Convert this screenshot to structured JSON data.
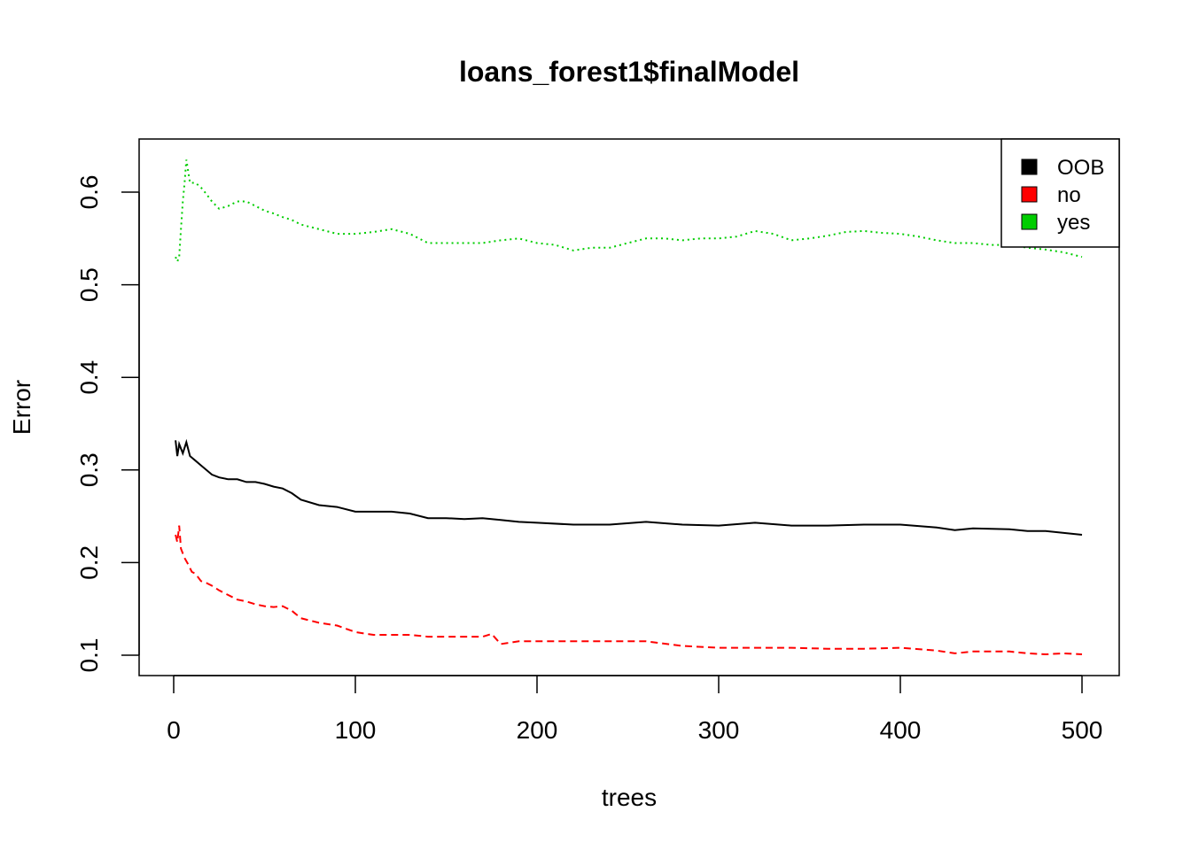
{
  "chart_data": {
    "type": "line",
    "title": "loans_forest1$finalModel",
    "xlabel": "trees",
    "ylabel": "Error",
    "xlim": [
      0,
      500
    ],
    "ylim": [
      0.1,
      0.6
    ],
    "xticks": [
      0,
      100,
      200,
      300,
      400,
      500
    ],
    "yticks": [
      0.1,
      0.2,
      0.3,
      0.4,
      0.5,
      0.6
    ],
    "grid": false,
    "legend_position": "top-right",
    "series": [
      {
        "name": "OOB",
        "color": "#000000",
        "line_style": "solid",
        "points": [
          [
            1,
            0.332
          ],
          [
            2,
            0.315
          ],
          [
            3,
            0.328
          ],
          [
            5,
            0.318
          ],
          [
            7,
            0.33
          ],
          [
            9,
            0.315
          ],
          [
            12,
            0.31
          ],
          [
            15,
            0.305
          ],
          [
            18,
            0.3
          ],
          [
            21,
            0.295
          ],
          [
            25,
            0.292
          ],
          [
            30,
            0.29
          ],
          [
            35,
            0.29
          ],
          [
            40,
            0.287
          ],
          [
            45,
            0.287
          ],
          [
            50,
            0.285
          ],
          [
            55,
            0.282
          ],
          [
            60,
            0.28
          ],
          [
            65,
            0.275
          ],
          [
            70,
            0.268
          ],
          [
            80,
            0.262
          ],
          [
            90,
            0.26
          ],
          [
            100,
            0.255
          ],
          [
            110,
            0.255
          ],
          [
            120,
            0.255
          ],
          [
            130,
            0.253
          ],
          [
            140,
            0.248
          ],
          [
            150,
            0.248
          ],
          [
            160,
            0.247
          ],
          [
            170,
            0.248
          ],
          [
            180,
            0.246
          ],
          [
            190,
            0.244
          ],
          [
            200,
            0.243
          ],
          [
            220,
            0.241
          ],
          [
            240,
            0.241
          ],
          [
            260,
            0.244
          ],
          [
            280,
            0.241
          ],
          [
            300,
            0.24
          ],
          [
            320,
            0.243
          ],
          [
            340,
            0.24
          ],
          [
            360,
            0.24
          ],
          [
            380,
            0.241
          ],
          [
            400,
            0.241
          ],
          [
            420,
            0.238
          ],
          [
            430,
            0.235
          ],
          [
            440,
            0.237
          ],
          [
            460,
            0.236
          ],
          [
            470,
            0.234
          ],
          [
            480,
            0.234
          ],
          [
            490,
            0.232
          ],
          [
            500,
            0.23
          ]
        ]
      },
      {
        "name": "no",
        "color": "#ff0000",
        "line_style": "dashed",
        "points": [
          [
            1,
            0.23
          ],
          [
            2,
            0.222
          ],
          [
            3,
            0.24
          ],
          [
            4,
            0.215
          ],
          [
            6,
            0.205
          ],
          [
            8,
            0.198
          ],
          [
            10,
            0.19
          ],
          [
            12,
            0.188
          ],
          [
            15,
            0.18
          ],
          [
            18,
            0.178
          ],
          [
            21,
            0.175
          ],
          [
            25,
            0.17
          ],
          [
            30,
            0.165
          ],
          [
            35,
            0.16
          ],
          [
            40,
            0.158
          ],
          [
            45,
            0.155
          ],
          [
            50,
            0.153
          ],
          [
            55,
            0.152
          ],
          [
            60,
            0.153
          ],
          [
            65,
            0.148
          ],
          [
            70,
            0.14
          ],
          [
            80,
            0.135
          ],
          [
            90,
            0.132
          ],
          [
            100,
            0.125
          ],
          [
            110,
            0.122
          ],
          [
            120,
            0.122
          ],
          [
            130,
            0.122
          ],
          [
            140,
            0.12
          ],
          [
            150,
            0.12
          ],
          [
            160,
            0.12
          ],
          [
            170,
            0.12
          ],
          [
            175,
            0.123
          ],
          [
            180,
            0.112
          ],
          [
            190,
            0.115
          ],
          [
            200,
            0.115
          ],
          [
            220,
            0.115
          ],
          [
            240,
            0.115
          ],
          [
            260,
            0.115
          ],
          [
            280,
            0.11
          ],
          [
            300,
            0.108
          ],
          [
            320,
            0.108
          ],
          [
            340,
            0.108
          ],
          [
            360,
            0.107
          ],
          [
            380,
            0.107
          ],
          [
            400,
            0.108
          ],
          [
            420,
            0.105
          ],
          [
            430,
            0.102
          ],
          [
            440,
            0.104
          ],
          [
            460,
            0.104
          ],
          [
            470,
            0.102
          ],
          [
            480,
            0.101
          ],
          [
            490,
            0.102
          ],
          [
            500,
            0.101
          ]
        ]
      },
      {
        "name": "yes",
        "color": "#00cd00",
        "line_style": "dotted",
        "points": [
          [
            1,
            0.53
          ],
          [
            2,
            0.525
          ],
          [
            3,
            0.53
          ],
          [
            4,
            0.56
          ],
          [
            5,
            0.59
          ],
          [
            6,
            0.61
          ],
          [
            7,
            0.635
          ],
          [
            9,
            0.61
          ],
          [
            12,
            0.61
          ],
          [
            15,
            0.605
          ],
          [
            18,
            0.598
          ],
          [
            21,
            0.59
          ],
          [
            25,
            0.582
          ],
          [
            30,
            0.585
          ],
          [
            35,
            0.59
          ],
          [
            40,
            0.59
          ],
          [
            45,
            0.585
          ],
          [
            50,
            0.58
          ],
          [
            55,
            0.577
          ],
          [
            60,
            0.573
          ],
          [
            65,
            0.57
          ],
          [
            70,
            0.565
          ],
          [
            80,
            0.56
          ],
          [
            90,
            0.555
          ],
          [
            100,
            0.555
          ],
          [
            110,
            0.557
          ],
          [
            120,
            0.56
          ],
          [
            130,
            0.555
          ],
          [
            140,
            0.545
          ],
          [
            150,
            0.545
          ],
          [
            160,
            0.545
          ],
          [
            170,
            0.545
          ],
          [
            180,
            0.548
          ],
          [
            190,
            0.55
          ],
          [
            200,
            0.545
          ],
          [
            210,
            0.543
          ],
          [
            220,
            0.537
          ],
          [
            230,
            0.54
          ],
          [
            240,
            0.54
          ],
          [
            250,
            0.545
          ],
          [
            260,
            0.55
          ],
          [
            270,
            0.55
          ],
          [
            280,
            0.548
          ],
          [
            290,
            0.55
          ],
          [
            300,
            0.55
          ],
          [
            310,
            0.552
          ],
          [
            320,
            0.558
          ],
          [
            330,
            0.555
          ],
          [
            340,
            0.548
          ],
          [
            350,
            0.55
          ],
          [
            360,
            0.553
          ],
          [
            370,
            0.557
          ],
          [
            380,
            0.558
          ],
          [
            390,
            0.556
          ],
          [
            400,
            0.555
          ],
          [
            410,
            0.552
          ],
          [
            420,
            0.548
          ],
          [
            430,
            0.545
          ],
          [
            440,
            0.545
          ],
          [
            450,
            0.543
          ],
          [
            460,
            0.543
          ],
          [
            470,
            0.54
          ],
          [
            480,
            0.538
          ],
          [
            490,
            0.535
          ],
          [
            500,
            0.53
          ]
        ]
      }
    ]
  }
}
